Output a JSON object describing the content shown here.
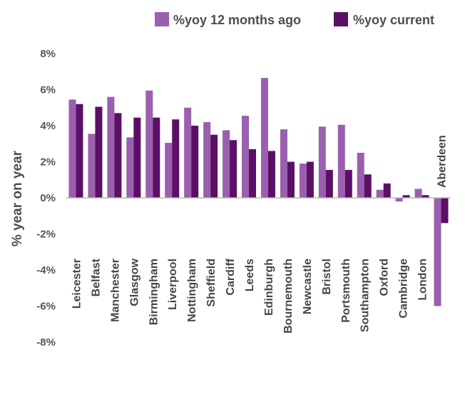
{
  "chart_data": {
    "type": "bar",
    "title": "",
    "xlabel": "",
    "ylabel": "% year on year",
    "ylim": [
      -8,
      8
    ],
    "yticks": [
      -8,
      -6,
      -4,
      -2,
      0,
      2,
      4,
      6,
      8
    ],
    "ytick_labels": [
      "-8%",
      "-6%",
      "-4%",
      "-2%",
      "0%",
      "2%",
      "4%",
      "6%",
      "8%"
    ],
    "grid": false,
    "legend_position": "top",
    "categories": [
      "Leicester",
      "Belfast",
      "Manchester",
      "Glasgow",
      "Birmingham",
      "Liverpool",
      "Nottingham",
      "Sheffield",
      "Cardiff",
      "Leeds",
      "Edinburgh",
      "Bournemouth",
      "Newcastle",
      "Bristol",
      "Portsmouth",
      "Southampton",
      "Oxford",
      "Cambridge",
      "London",
      "Aberdeen"
    ],
    "series": [
      {
        "name": "%yoy 12 months ago",
        "color": "#9a5fae",
        "values": [
          5.45,
          3.55,
          5.6,
          3.35,
          5.95,
          3.05,
          5.0,
          4.2,
          3.75,
          4.55,
          6.65,
          3.8,
          1.9,
          3.95,
          4.05,
          2.5,
          0.45,
          -0.2,
          0.5,
          -6.0
        ]
      },
      {
        "name": "%yoy current",
        "color": "#5b0f66",
        "values": [
          5.2,
          5.05,
          4.7,
          4.45,
          4.45,
          4.35,
          4.0,
          3.5,
          3.2,
          2.7,
          2.6,
          2.0,
          2.0,
          1.55,
          1.55,
          1.3,
          0.8,
          0.15,
          0.15,
          -1.4
        ]
      }
    ]
  }
}
